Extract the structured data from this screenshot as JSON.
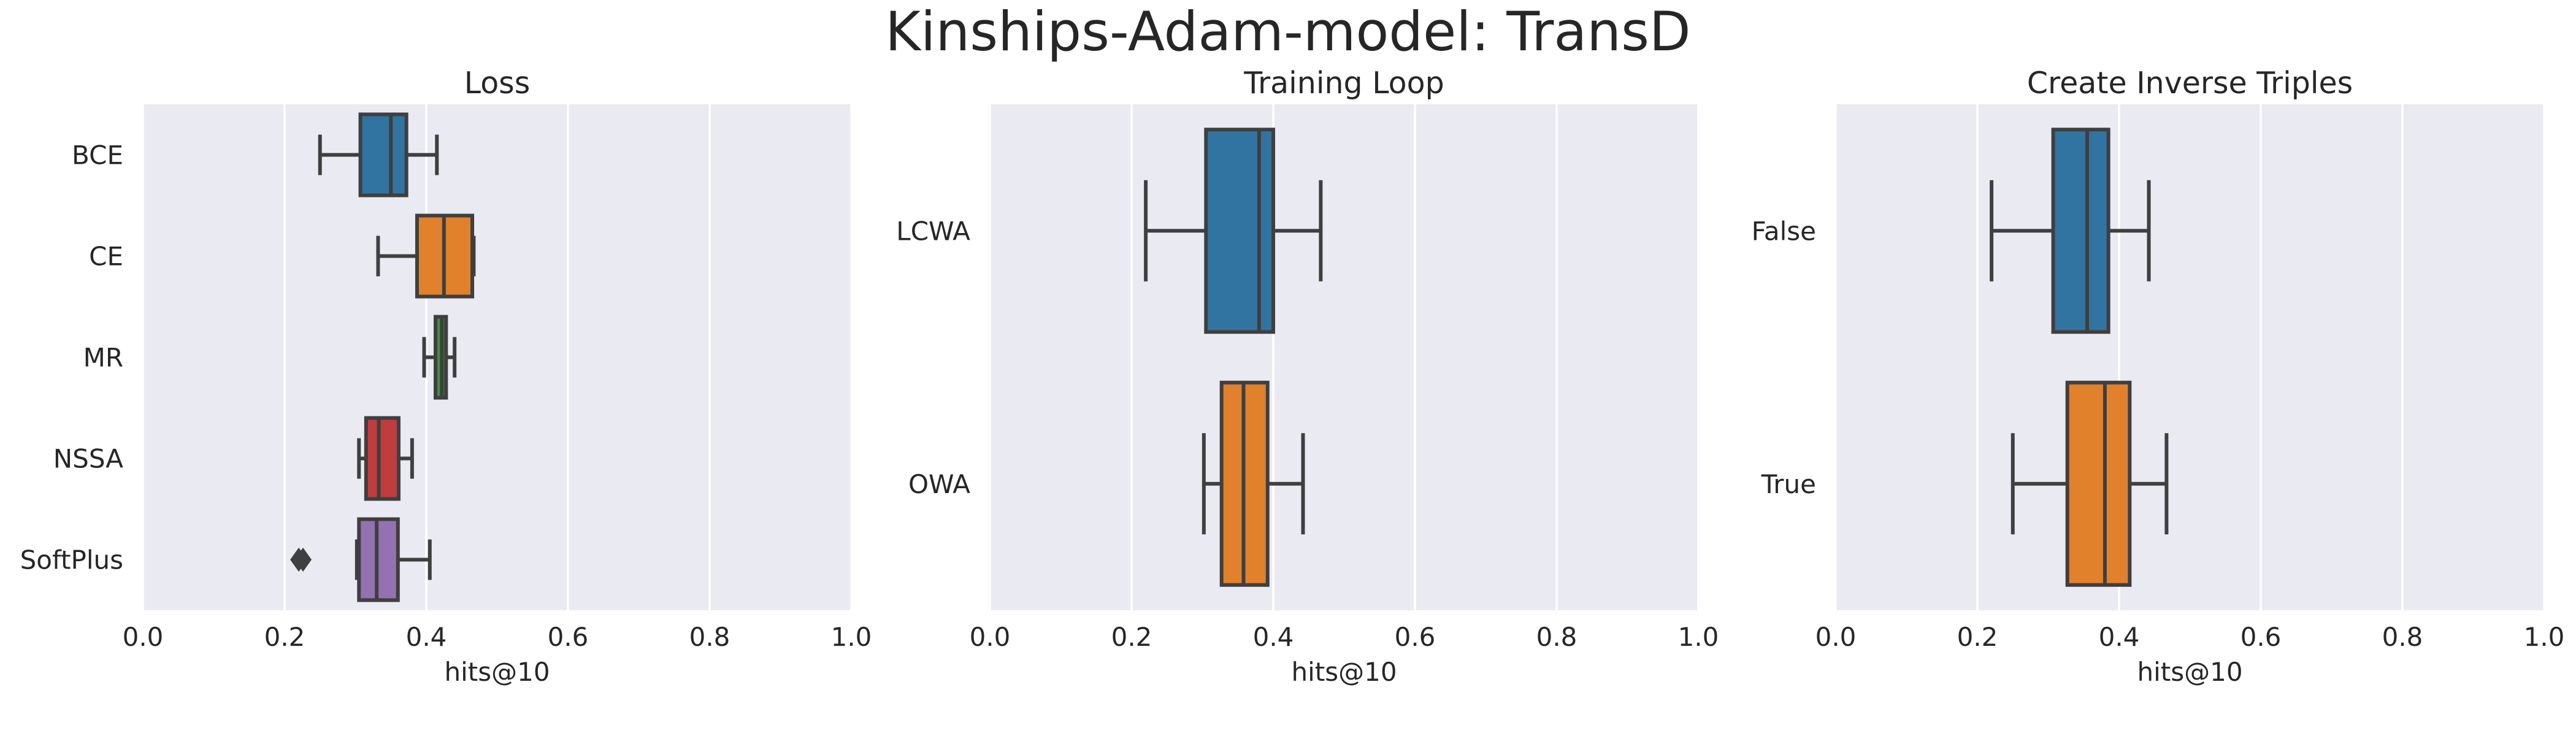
{
  "figure": {
    "title": "Kinships-Adam-model: TransD"
  },
  "style": {
    "background": "#eaeaf2",
    "grid": "#ffffff",
    "line": "#3f3f3f",
    "palette": [
      "#3274a1",
      "#e1812c",
      "#3a923a",
      "#c03d3e",
      "#9372b2"
    ]
  },
  "chart_data": [
    {
      "type": "box",
      "orientation": "horizontal",
      "title": "Loss",
      "xlabel": "hits@10",
      "ylabel": "",
      "xlim": [
        0.0,
        1.0
      ],
      "xticks": [
        "0.0",
        "0.2",
        "0.4",
        "0.6",
        "0.8",
        "1.0"
      ],
      "grid": true,
      "categories": [
        "BCE",
        "CE",
        "MR",
        "NSSA",
        "SoftPlus"
      ],
      "boxes": [
        {
          "label": "BCE",
          "whislo": 0.25,
          "q1": 0.307,
          "med": 0.35,
          "q3": 0.372,
          "whishi": 0.415,
          "fliers": []
        },
        {
          "label": "CE",
          "whislo": 0.332,
          "q1": 0.387,
          "med": 0.425,
          "q3": 0.465,
          "whishi": 0.467,
          "fliers": []
        },
        {
          "label": "MR",
          "whislo": 0.397,
          "q1": 0.413,
          "med": 0.422,
          "q3": 0.428,
          "whishi": 0.44,
          "fliers": []
        },
        {
          "label": "NSSA",
          "whislo": 0.305,
          "q1": 0.315,
          "med": 0.333,
          "q3": 0.361,
          "whishi": 0.38,
          "fliers": []
        },
        {
          "label": "SoftPlus",
          "whislo": 0.302,
          "q1": 0.305,
          "med": 0.33,
          "q3": 0.36,
          "whishi": 0.405,
          "fliers": [
            0.22,
            0.226
          ]
        }
      ]
    },
    {
      "type": "box",
      "orientation": "horizontal",
      "title": "Training Loop",
      "xlabel": "hits@10",
      "ylabel": "",
      "xlim": [
        0.0,
        1.0
      ],
      "xticks": [
        "0.0",
        "0.2",
        "0.4",
        "0.6",
        "0.8",
        "1.0"
      ],
      "grid": true,
      "categories": [
        "LCWA",
        "OWA"
      ],
      "boxes": [
        {
          "label": "LCWA",
          "whislo": 0.22,
          "q1": 0.305,
          "med": 0.38,
          "q3": 0.4,
          "whishi": 0.467,
          "fliers": []
        },
        {
          "label": "OWA",
          "whislo": 0.302,
          "q1": 0.327,
          "med": 0.358,
          "q3": 0.392,
          "whishi": 0.442,
          "fliers": []
        }
      ]
    },
    {
      "type": "box",
      "orientation": "horizontal",
      "title": "Create Inverse Triples",
      "xlabel": "hits@10",
      "ylabel": "",
      "xlim": [
        0.0,
        1.0
      ],
      "xticks": [
        "0.0",
        "0.2",
        "0.4",
        "0.6",
        "0.8",
        "1.0"
      ],
      "grid": true,
      "categories": [
        "False",
        "True"
      ],
      "boxes": [
        {
          "label": "False",
          "whislo": 0.22,
          "q1": 0.307,
          "med": 0.355,
          "q3": 0.385,
          "whishi": 0.442,
          "fliers": []
        },
        {
          "label": "True",
          "whislo": 0.25,
          "q1": 0.327,
          "med": 0.38,
          "q3": 0.415,
          "whishi": 0.467,
          "fliers": []
        }
      ]
    }
  ]
}
